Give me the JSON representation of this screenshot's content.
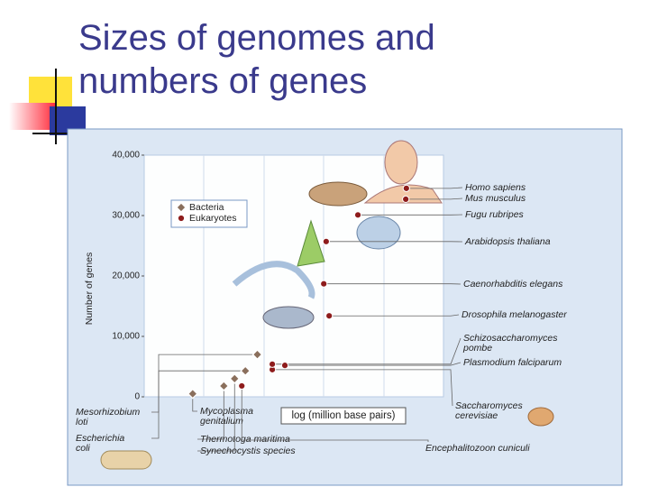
{
  "chart_data": {
    "type": "scatter",
    "title": "Sizes of genomes and numbers of genes",
    "xlabel": "log (million base pairs)",
    "ylabel": "Number of genes",
    "xlim": [
      -1,
      4
    ],
    "ylim": [
      0,
      40000
    ],
    "yticks": [
      0,
      {
        "value": 10000,
        "label": "10,000"
      },
      {
        "value": 20000,
        "label": "20,000"
      },
      {
        "value": 30000,
        "label": "30,000"
      },
      {
        "value": 40000,
        "label": "40,000"
      }
    ],
    "legend": "upper left",
    "series": [
      {
        "name": "Bacteria",
        "color": "#8a6f5c",
        "marker": "diamond",
        "x": [
          -0.19,
          0.33,
          0.51,
          0.69,
          0.89
        ],
        "values": [
          500,
          1800,
          3000,
          4300,
          7000
        ],
        "labels": [
          [
            "Mycoplasma",
            "genitalium"
          ],
          [
            "Thermotoga maritima"
          ],
          [
            "Synechocystis species"
          ],
          [
            "Escherichia",
            "coli"
          ],
          [
            "Mesorhizobium",
            "loti"
          ]
        ]
      },
      {
        "name": "Eukaryotes",
        "color": "#8e1c1c",
        "marker": "circle",
        "x": [
          0.63,
          1.14,
          1.14,
          1.35,
          2.09,
          2.0,
          2.04,
          2.57,
          3.37,
          3.38
        ],
        "values": [
          1800,
          4500,
          5400,
          5200,
          13400,
          18700,
          25700,
          30100,
          32700,
          34500
        ],
        "labels": [
          [
            "Encephalitozoon cuniculi"
          ],
          [
            "Saccharomyces",
            "cerevisiae"
          ],
          [
            "Schizosaccharomyces",
            "pombe"
          ],
          [
            "Plasmodium falciparum"
          ],
          [
            "Drosophila melanogaster"
          ],
          [
            "Caenorhabditis elegans"
          ],
          [
            "Arabidopsis thaliana"
          ],
          [
            "Fugu rubripes"
          ],
          [
            "Mus musculus"
          ],
          [
            "Homo sapiens"
          ]
        ]
      }
    ]
  }
}
